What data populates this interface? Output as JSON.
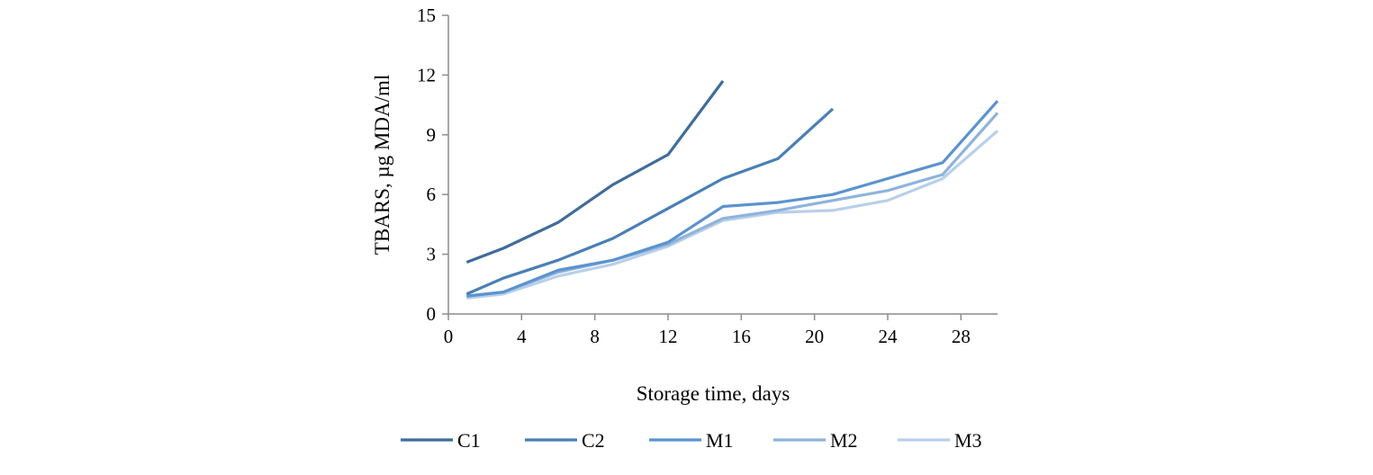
{
  "chart_data": {
    "type": "line",
    "title": "",
    "xlabel": "Storage time,  days",
    "ylabel": "TBARS,  µg MDA/ml",
    "xlim": [
      0,
      30
    ],
    "ylim": [
      0,
      15
    ],
    "xticks": [
      "0",
      "4",
      "8",
      "12",
      "16",
      "20",
      "24",
      "28"
    ],
    "yticks": [
      "0",
      "3",
      "6",
      "9",
      "12",
      "15"
    ],
    "grid": false,
    "legend_position": "bottom",
    "series": [
      {
        "name": "C1",
        "color": "#3f6c9b",
        "x": [
          1,
          3,
          6,
          9,
          12,
          15
        ],
        "y": [
          2.6,
          3.3,
          4.6,
          6.5,
          8.0,
          11.7
        ]
      },
      {
        "name": "C2",
        "color": "#4a7fb5",
        "x": [
          1,
          3,
          6,
          9,
          12,
          15,
          18,
          21
        ],
        "y": [
          1.0,
          1.8,
          2.7,
          3.8,
          5.3,
          6.8,
          7.8,
          10.3
        ]
      },
      {
        "name": "M1",
        "color": "#5b93cf",
        "x": [
          1,
          3,
          6,
          9,
          12,
          15,
          18,
          21,
          24,
          27,
          30
        ],
        "y": [
          0.9,
          1.1,
          2.2,
          2.7,
          3.6,
          5.4,
          5.6,
          6.0,
          6.8,
          7.6,
          10.7
        ]
      },
      {
        "name": "M2",
        "color": "#8fb3db",
        "x": [
          1,
          3,
          6,
          9,
          12,
          15,
          18,
          21,
          24,
          27,
          30
        ],
        "y": [
          0.9,
          1.1,
          2.1,
          2.7,
          3.5,
          4.8,
          5.2,
          5.7,
          6.2,
          7.0,
          10.1
        ]
      },
      {
        "name": "M3",
        "color": "#b9cfea",
        "x": [
          1,
          3,
          6,
          9,
          12,
          15,
          18,
          21,
          24,
          27,
          30
        ],
        "y": [
          0.8,
          1.0,
          1.9,
          2.5,
          3.4,
          4.7,
          5.1,
          5.2,
          5.7,
          6.8,
          9.2
        ]
      }
    ]
  }
}
